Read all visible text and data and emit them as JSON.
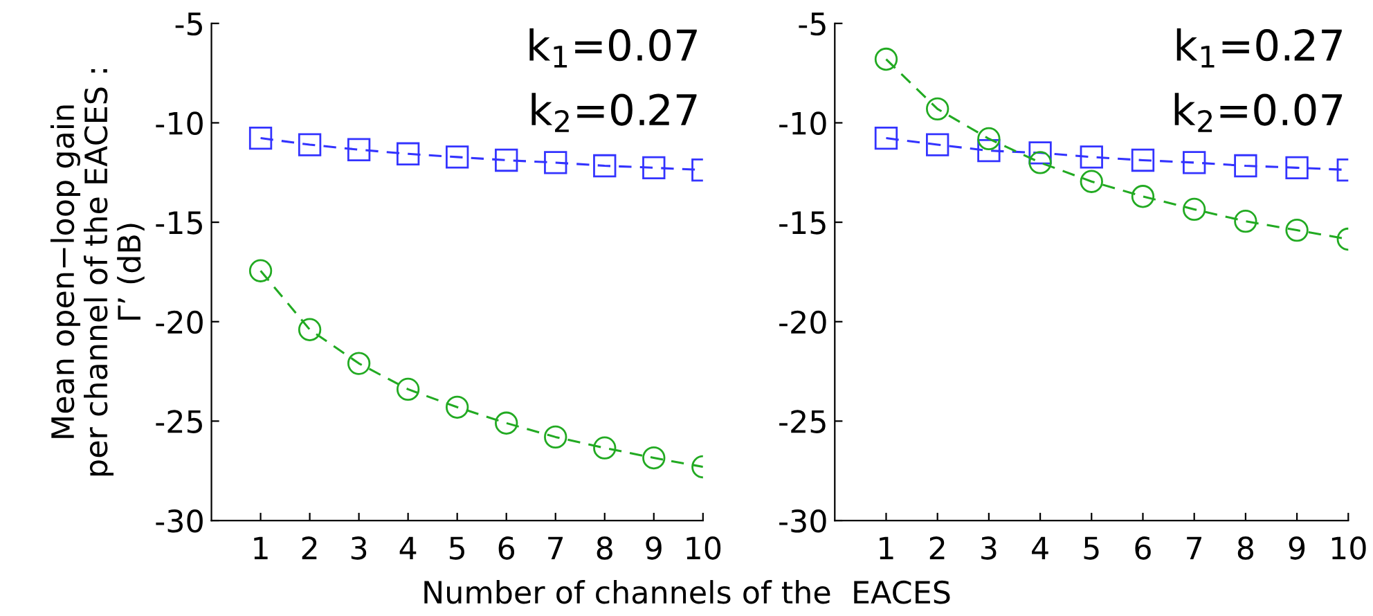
{
  "chart_data": [
    {
      "type": "line",
      "xlabel": "Number of channels of the  EACES",
      "ylabel": "Mean open−loop gain\nper channel of the EACES :\nΓ’ (dB)",
      "x": [
        1,
        2,
        3,
        4,
        5,
        6,
        7,
        8,
        9,
        10
      ],
      "xlim": [
        0,
        10
      ],
      "xticks": [
        1,
        2,
        3,
        4,
        5,
        6,
        7,
        8,
        9,
        10
      ],
      "ylim": [
        -30,
        -5
      ],
      "yticks": [
        -30,
        -25,
        -20,
        -15,
        -10,
        -5
      ],
      "grid": false,
      "legend": false,
      "line_style": "dashed",
      "annotations": [
        "k$_{1}$=0.07",
        "k$_{2}$=0.27"
      ],
      "series": [
        {
          "color": "#3333ff",
          "marker": "square",
          "values": [
            -10.77,
            -11.1,
            -11.35,
            -11.56,
            -11.72,
            -11.88,
            -12.0,
            -12.16,
            -12.26,
            -12.37
          ]
        },
        {
          "color": "#22aa22",
          "marker": "circle",
          "values": [
            -17.44,
            -20.4,
            -22.1,
            -23.4,
            -24.3,
            -25.1,
            -25.8,
            -26.35,
            -26.85,
            -27.3
          ]
        }
      ]
    },
    {
      "type": "line",
      "x": [
        1,
        2,
        3,
        4,
        5,
        6,
        7,
        8,
        9,
        10
      ],
      "xlim": [
        0,
        10
      ],
      "xticks": [
        1,
        2,
        3,
        4,
        5,
        6,
        7,
        8,
        9,
        10
      ],
      "ylim": [
        -30,
        -5
      ],
      "yticks": [
        -30,
        -25,
        -20,
        -15,
        -10,
        -5
      ],
      "grid": false,
      "legend": false,
      "line_style": "dashed",
      "annotations": [
        "k$_{1}$=0.27",
        "k$_{2}$=0.07"
      ],
      "series": [
        {
          "color": "#3333ff",
          "marker": "square",
          "values": [
            -10.77,
            -11.1,
            -11.4,
            -11.51,
            -11.72,
            -11.88,
            -12.0,
            -12.16,
            -12.26,
            -12.37
          ]
        },
        {
          "color": "#22aa22",
          "marker": "circle",
          "values": [
            -6.8,
            -9.3,
            -10.8,
            -12.0,
            -12.95,
            -13.7,
            -14.35,
            -14.95,
            -15.4,
            -15.85
          ]
        }
      ]
    }
  ]
}
